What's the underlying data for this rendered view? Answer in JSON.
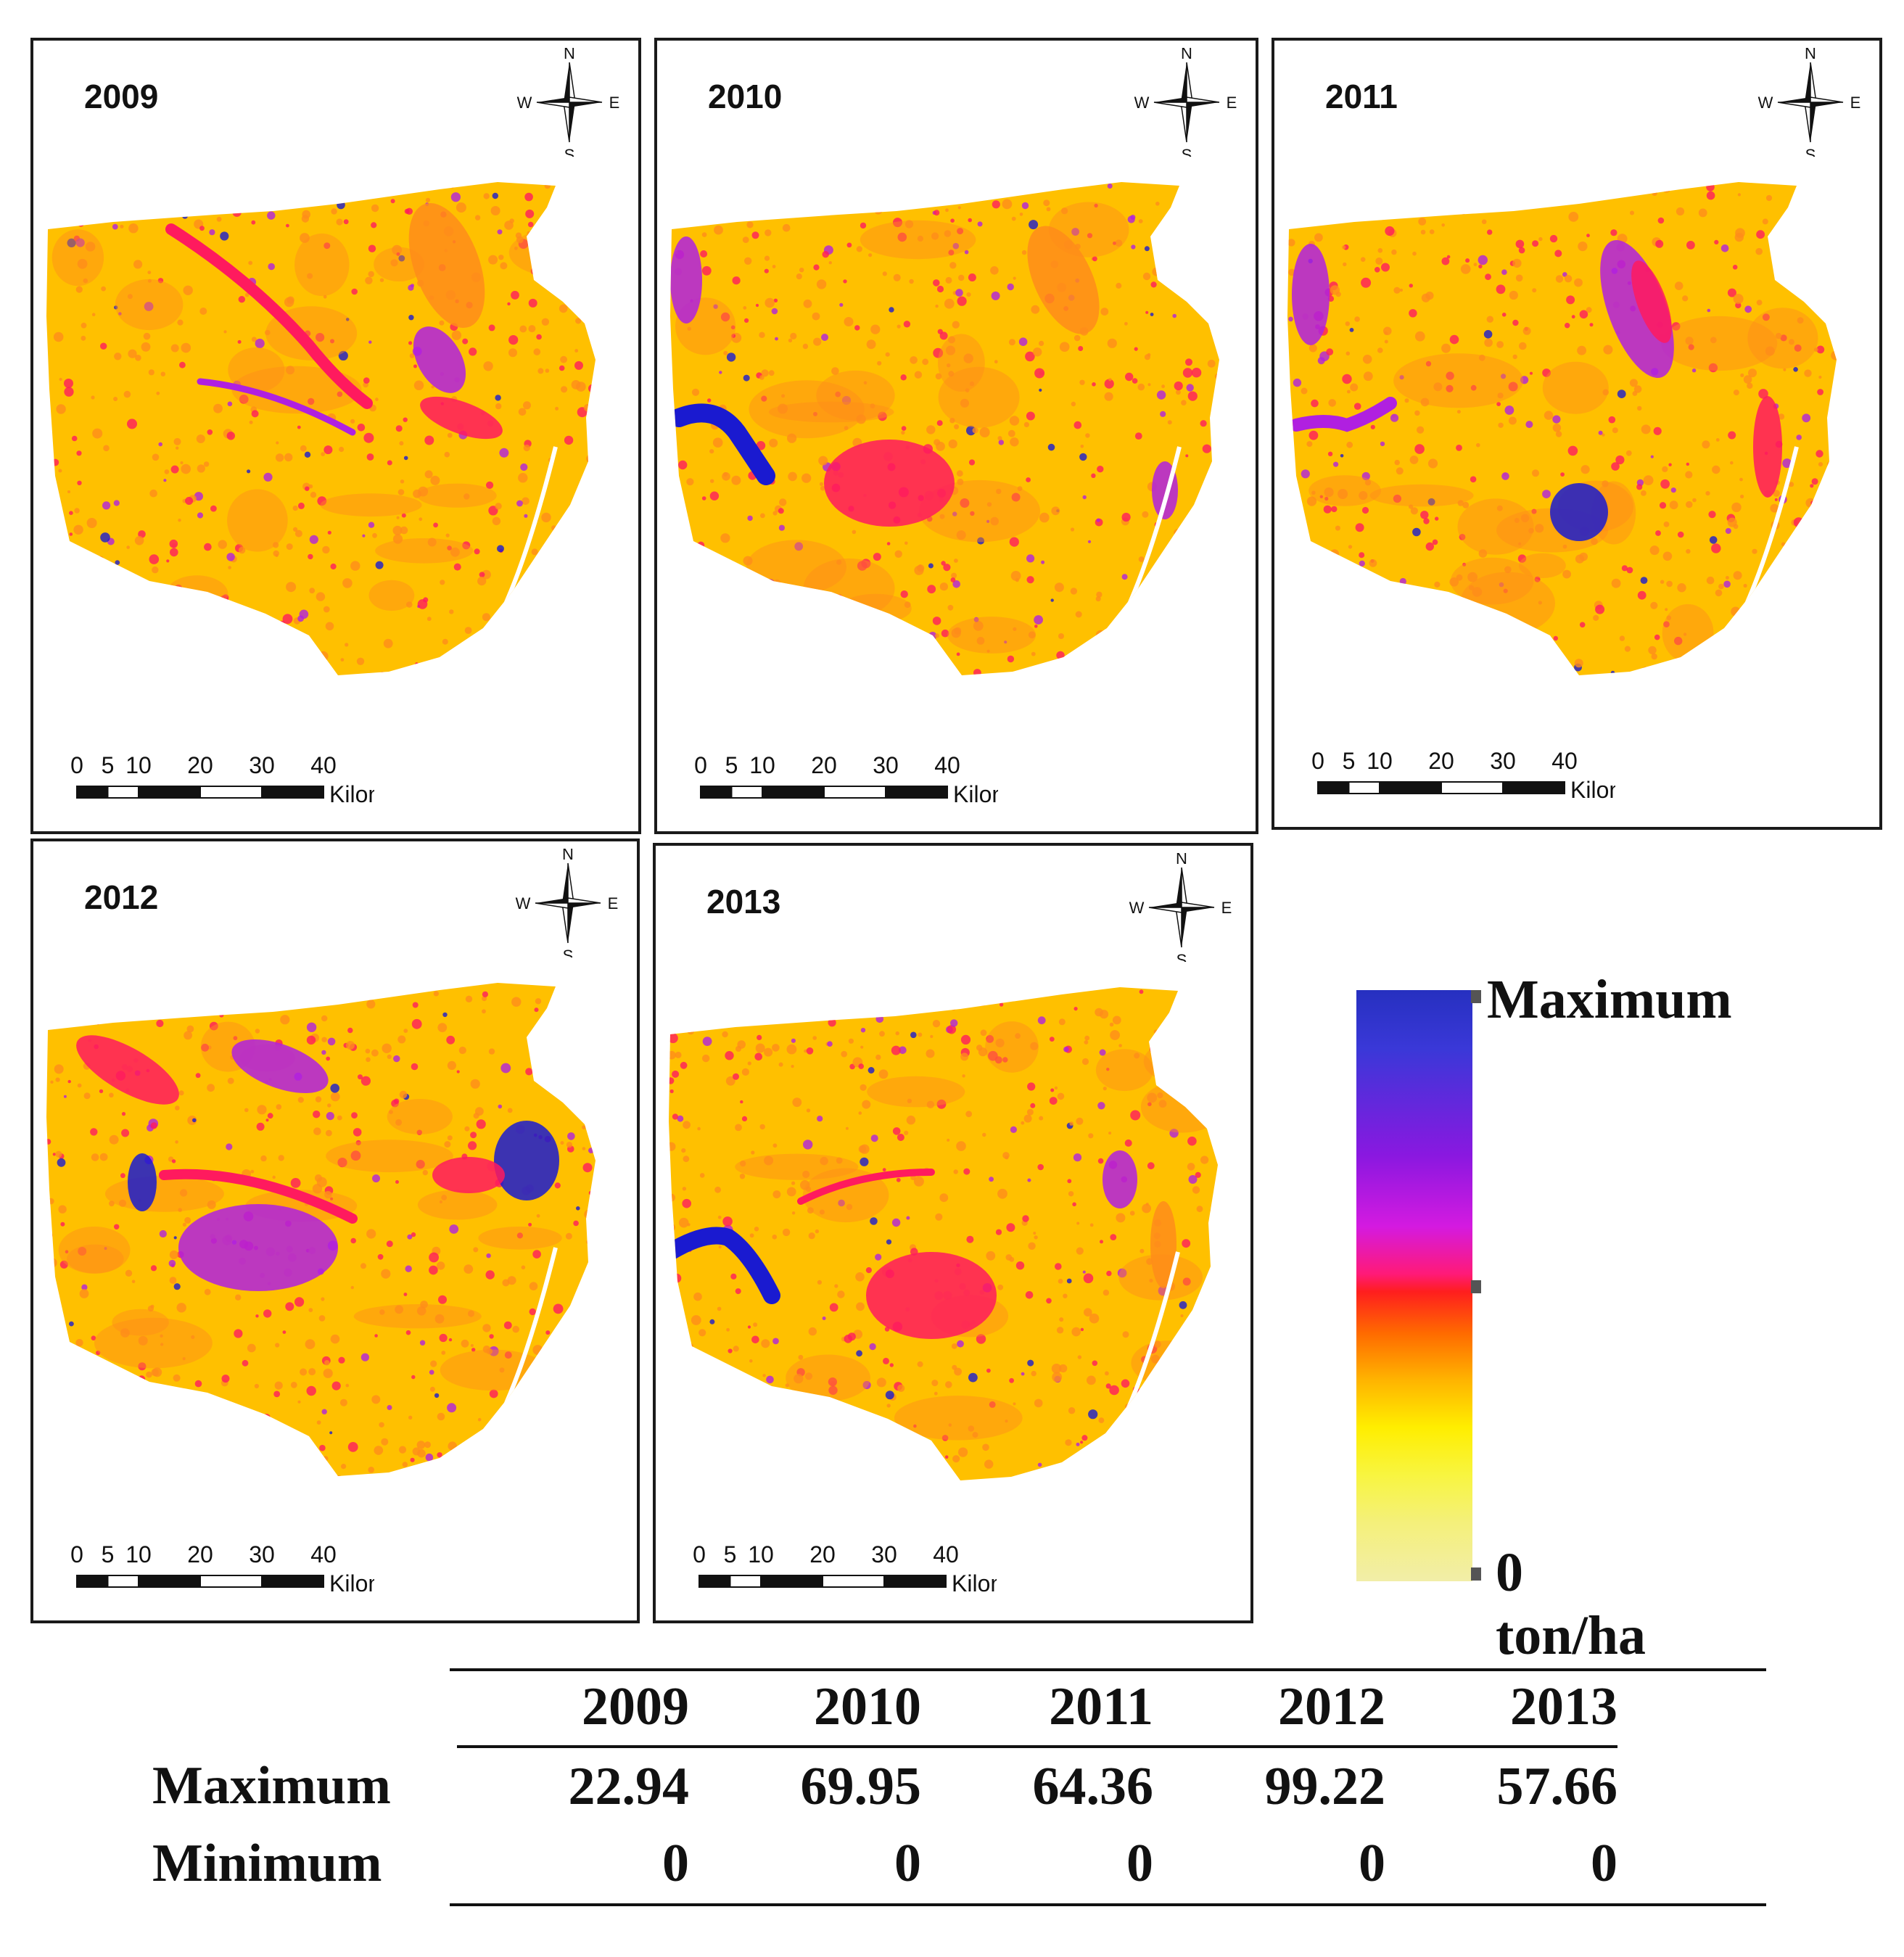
{
  "panels": [
    {
      "year": "2009",
      "variant": 0
    },
    {
      "year": "2010",
      "variant": 1
    },
    {
      "year": "2011",
      "variant": 2
    },
    {
      "year": "2012",
      "variant": 3
    },
    {
      "year": "2013",
      "variant": 4
    }
  ],
  "compass": {
    "n": "N",
    "s": "S",
    "e": "E",
    "w": "W"
  },
  "scalebar": {
    "ticks": [
      "0",
      "5",
      "10",
      "20",
      "30",
      "40"
    ],
    "unit": "Kilometers"
  },
  "legend": {
    "max_label": "Maximum",
    "min_label": "0 ton/ha"
  },
  "colors": {
    "low": "#ffc000",
    "mid": "#ff8c1a",
    "high": "#ff1a5e",
    "very_high": "#b020e0",
    "max": "#1a1ad0"
  },
  "stats": {
    "years": [
      "2009",
      "2010",
      "2011",
      "2012",
      "2013"
    ],
    "rows": [
      {
        "label": "Maximum",
        "values": [
          "22.94",
          "69.95",
          "64.36",
          "99.22",
          "57.66"
        ]
      },
      {
        "label": "Minimum",
        "values": [
          "0",
          "0",
          "0",
          "0",
          "0"
        ]
      }
    ]
  }
}
